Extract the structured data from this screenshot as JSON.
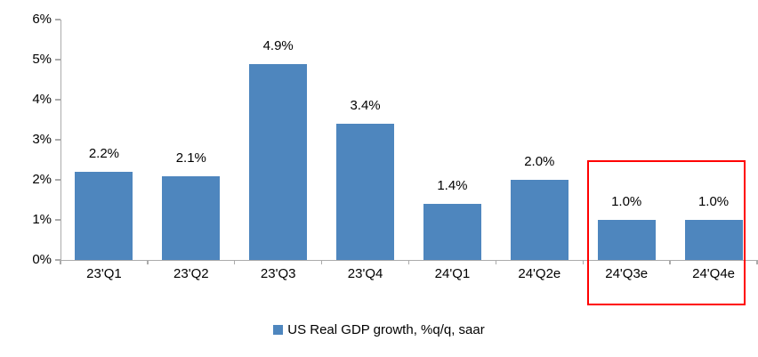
{
  "chart_data": {
    "type": "bar",
    "title": "",
    "xlabel": "",
    "ylabel": "",
    "categories": [
      "23'Q1",
      "23'Q2",
      "23'Q3",
      "23'Q4",
      "24'Q1",
      "24'Q2e",
      "24'Q3e",
      "24'Q4e"
    ],
    "values": [
      2.2,
      2.1,
      4.9,
      3.4,
      1.4,
      2.0,
      1.0,
      1.0
    ],
    "value_labels": [
      "2.2%",
      "2.1%",
      "4.9%",
      "3.4%",
      "1.4%",
      "2.0%",
      "1.0%",
      "1.0%"
    ],
    "y_tick_labels": [
      "0%",
      "1%",
      "2%",
      "3%",
      "4%",
      "5%",
      "6%"
    ],
    "ylim": [
      0,
      6
    ],
    "grid": false,
    "legend": [
      "US Real GDP growth, %q/q, saar"
    ],
    "legend_position": "bottom-center",
    "colors": {
      "bar": "#4E86BE",
      "axis": "#ABABAB",
      "text": "#000000",
      "highlight_box": "#FF0000"
    },
    "annotations": {
      "highlight_box_covers": [
        "24'Q3e",
        "24'Q4e"
      ]
    }
  }
}
